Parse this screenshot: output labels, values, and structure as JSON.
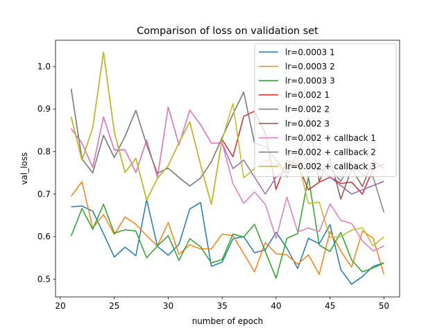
{
  "chart_data": {
    "type": "line",
    "title": "Comparison of loss on validation set",
    "xlabel": "number of epoch",
    "ylabel": "val_loss",
    "xlim": [
      19.55,
      51.45
    ],
    "ylim": [
      0.458,
      1.062
    ],
    "xticks": [
      20,
      25,
      30,
      35,
      40,
      45,
      50
    ],
    "yticks": [
      0.5,
      0.6,
      0.7,
      0.8,
      0.9,
      1.0
    ],
    "xtick_labels": [
      "20",
      "25",
      "30",
      "35",
      "40",
      "45",
      "50"
    ],
    "ytick_labels": [
      "0.5",
      "0.6",
      "0.7",
      "0.8",
      "0.9",
      "1.0"
    ],
    "legend_position": "top-right",
    "grid": false,
    "x": [
      21,
      22,
      23,
      24,
      25,
      26,
      27,
      28,
      29,
      30,
      31,
      32,
      33,
      34,
      35,
      36,
      37,
      38,
      39,
      40,
      41,
      42,
      43,
      44,
      45,
      46,
      47,
      48,
      49,
      50
    ],
    "series": [
      {
        "name": "lr=0.0003 1",
        "color": "#1f77b4",
        "values": [
          0.67,
          0.672,
          0.66,
          0.607,
          0.552,
          0.575,
          0.555,
          0.687,
          0.577,
          0.556,
          0.582,
          0.665,
          0.68,
          0.53,
          0.54,
          0.595,
          0.6,
          0.562,
          0.569,
          0.61,
          0.573,
          0.525,
          0.596,
          0.583,
          0.628,
          0.522,
          0.488,
          0.506,
          0.53,
          0.538
        ]
      },
      {
        "name": "lr=0.0003 2",
        "color": "#ff7f0e",
        "values": [
          0.695,
          0.729,
          0.62,
          0.652,
          0.605,
          0.646,
          0.629,
          0.602,
          0.578,
          0.633,
          0.558,
          0.581,
          0.571,
          0.571,
          0.606,
          0.602,
          0.56,
          0.517,
          0.586,
          0.56,
          0.557,
          0.535,
          0.557,
          0.511,
          0.612,
          0.566,
          0.528,
          0.613,
          0.596,
          0.511
        ]
      },
      {
        "name": "lr=0.0003 3",
        "color": "#2ca02c",
        "values": [
          0.601,
          0.666,
          0.617,
          0.676,
          0.608,
          0.616,
          0.613,
          0.55,
          0.578,
          0.602,
          0.544,
          0.595,
          0.576,
          0.538,
          0.546,
          0.606,
          0.599,
          0.629,
          0.565,
          0.502,
          0.596,
          0.607,
          0.74,
          0.58,
          0.565,
          0.61,
          0.545,
          0.517,
          0.526,
          0.538
        ]
      },
      {
        "name": "lr=0.002 1",
        "color": "#d62728",
        "values": [
          0.882,
          0.78,
          0.856,
          1.034,
          0.846,
          0.751,
          0.784,
          0.686,
          0.737,
          0.767,
          0.821,
          0.87,
          0.769,
          0.676,
          0.828,
          0.788,
          0.883,
          0.895,
          0.843,
          0.711,
          0.78,
          0.77,
          0.71,
          0.728,
          0.74,
          0.725,
          0.728,
          0.7,
          0.76,
          0.77
        ]
      },
      {
        "name": "lr=0.002 2",
        "color": "#9467bd",
        "values": [
          0.854,
          0.82,
          0.763,
          0.881,
          0.804,
          0.804,
          0.751,
          0.827,
          0.739,
          0.905,
          0.816,
          0.898,
          0.863,
          0.82,
          0.82,
          0.76,
          0.78,
          0.74,
          0.7,
          0.74,
          0.756,
          0.78,
          0.75,
          0.76,
          0.74,
          0.72,
          0.7,
          0.71,
          0.72,
          0.73
        ]
      },
      {
        "name": "lr=0.002 3",
        "color": "#8c564b",
        "values": [
          0.948,
          0.783,
          0.75,
          0.838,
          0.786,
          0.836,
          0.897,
          0.816,
          0.749,
          0.761,
          0.739,
          0.719,
          0.738,
          0.776,
          0.833,
          0.888,
          0.94,
          0.82,
          0.812,
          0.78,
          0.75,
          0.78,
          0.88,
          0.73,
          0.784,
          0.688,
          0.76,
          0.718,
          0.78,
          0.76
        ]
      },
      {
        "name": "lr=0.002 + callback 1",
        "color": "#e377c2",
        "values": [
          0.854,
          0.82,
          0.763,
          0.881,
          0.804,
          0.804,
          0.751,
          0.827,
          0.739,
          0.905,
          0.816,
          0.898,
          0.863,
          0.82,
          0.82,
          0.725,
          0.678,
          0.705,
          0.676,
          0.596,
          0.693,
          0.611,
          0.62,
          0.612,
          0.677,
          0.638,
          0.631,
          0.59,
          0.566,
          0.578
        ]
      },
      {
        "name": "lr=0.002 + callback 2",
        "color": "#7f7f7f",
        "values": [
          0.948,
          0.783,
          0.75,
          0.838,
          0.786,
          0.836,
          0.897,
          0.816,
          0.749,
          0.761,
          0.739,
          0.719,
          0.738,
          0.776,
          0.833,
          0.888,
          0.94,
          0.82,
          0.812,
          0.78,
          0.74,
          0.8,
          0.78,
          0.755,
          0.76,
          0.73,
          0.78,
          0.745,
          0.74,
          0.657
        ]
      },
      {
        "name": "lr=0.002 + callback 3",
        "color": "#bcbd22",
        "values": [
          0.882,
          0.78,
          0.856,
          1.034,
          0.846,
          0.751,
          0.784,
          0.686,
          0.737,
          0.767,
          0.821,
          0.87,
          0.769,
          0.676,
          0.828,
          0.913,
          0.738,
          0.76,
          0.78,
          0.77,
          0.758,
          0.78,
          0.678,
          0.681,
          0.598,
          0.6,
          0.615,
          0.621,
          0.578,
          0.6
        ]
      }
    ]
  }
}
